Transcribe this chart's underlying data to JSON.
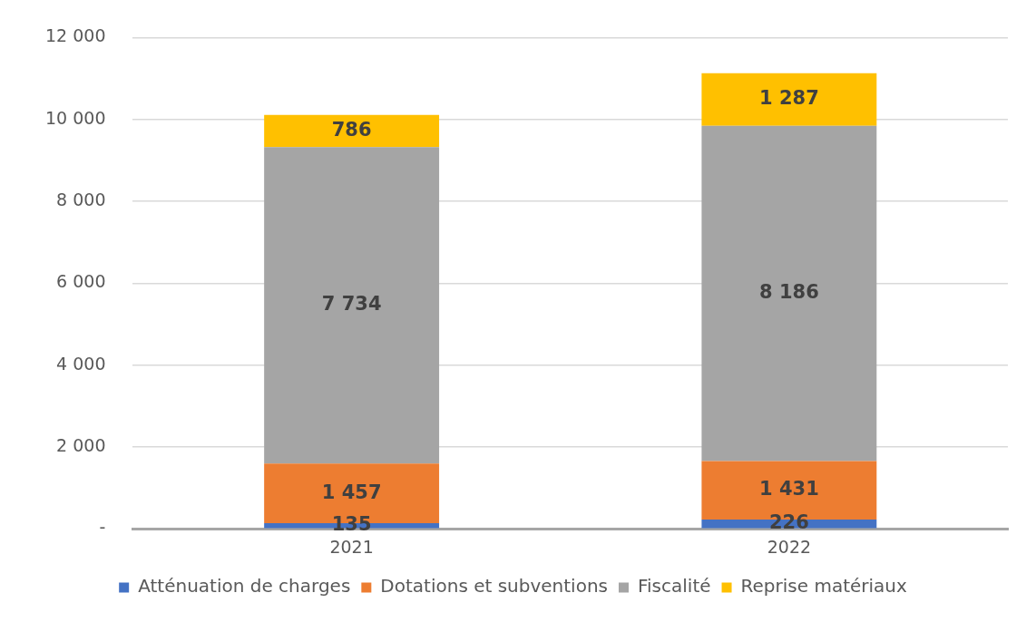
{
  "chart_data": {
    "type": "bar",
    "stacked": true,
    "categories": [
      "2021",
      "2022"
    ],
    "series": [
      {
        "name": "Atténuation de charges",
        "color": "#4472c4",
        "values": [
          135,
          226
        ]
      },
      {
        "name": "Dotations et subventions",
        "color": "#ed7d31",
        "values": [
          1457,
          1431
        ]
      },
      {
        "name": "Fiscalité",
        "color": "#a5a5a5",
        "values": [
          7734,
          8186
        ]
      },
      {
        "name": "Reprise matériaux",
        "color": "#ffc000",
        "values": [
          786,
          1287
        ]
      }
    ],
    "ylim": [
      0,
      12000
    ],
    "yticks": [
      {
        "value": 0,
        "label": "-"
      },
      {
        "value": 2000,
        "label": "2 000"
      },
      {
        "value": 4000,
        "label": "4 000"
      },
      {
        "value": 6000,
        "label": "6 000"
      },
      {
        "value": 8000,
        "label": "8 000"
      },
      {
        "value": 10000,
        "label": "10 000"
      },
      {
        "value": 12000,
        "label": "12 000"
      }
    ],
    "grid": "y",
    "legend": "bottom",
    "data_labels": true
  }
}
